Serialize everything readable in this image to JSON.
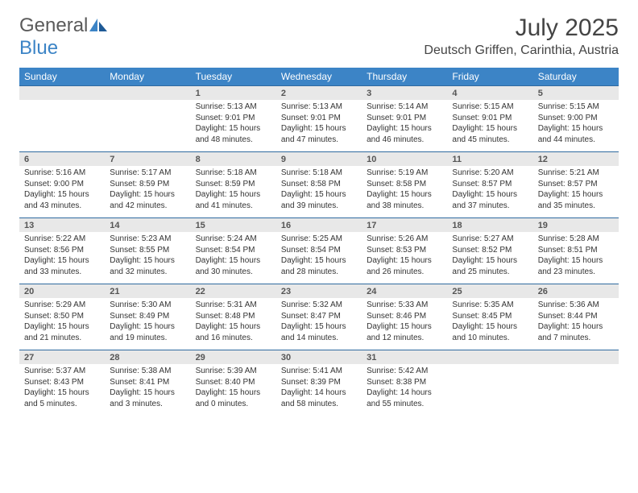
{
  "brand": {
    "word1": "General",
    "word2": "Blue"
  },
  "title": "July 2025",
  "location": "Deutsch Griffen, Carinthia, Austria",
  "colors": {
    "header_bg": "#3c84c6",
    "header_border": "#2f6aa0",
    "dayband_bg": "#e8e8e8",
    "text": "#333333"
  },
  "weekdays": [
    "Sunday",
    "Monday",
    "Tuesday",
    "Wednesday",
    "Thursday",
    "Friday",
    "Saturday"
  ],
  "weeks": [
    [
      null,
      null,
      {
        "n": "1",
        "sunrise": "5:13 AM",
        "sunset": "9:01 PM",
        "dl": "15 hours and 48 minutes."
      },
      {
        "n": "2",
        "sunrise": "5:13 AM",
        "sunset": "9:01 PM",
        "dl": "15 hours and 47 minutes."
      },
      {
        "n": "3",
        "sunrise": "5:14 AM",
        "sunset": "9:01 PM",
        "dl": "15 hours and 46 minutes."
      },
      {
        "n": "4",
        "sunrise": "5:15 AM",
        "sunset": "9:01 PM",
        "dl": "15 hours and 45 minutes."
      },
      {
        "n": "5",
        "sunrise": "5:15 AM",
        "sunset": "9:00 PM",
        "dl": "15 hours and 44 minutes."
      }
    ],
    [
      {
        "n": "6",
        "sunrise": "5:16 AM",
        "sunset": "9:00 PM",
        "dl": "15 hours and 43 minutes."
      },
      {
        "n": "7",
        "sunrise": "5:17 AM",
        "sunset": "8:59 PM",
        "dl": "15 hours and 42 minutes."
      },
      {
        "n": "8",
        "sunrise": "5:18 AM",
        "sunset": "8:59 PM",
        "dl": "15 hours and 41 minutes."
      },
      {
        "n": "9",
        "sunrise": "5:18 AM",
        "sunset": "8:58 PM",
        "dl": "15 hours and 39 minutes."
      },
      {
        "n": "10",
        "sunrise": "5:19 AM",
        "sunset": "8:58 PM",
        "dl": "15 hours and 38 minutes."
      },
      {
        "n": "11",
        "sunrise": "5:20 AM",
        "sunset": "8:57 PM",
        "dl": "15 hours and 37 minutes."
      },
      {
        "n": "12",
        "sunrise": "5:21 AM",
        "sunset": "8:57 PM",
        "dl": "15 hours and 35 minutes."
      }
    ],
    [
      {
        "n": "13",
        "sunrise": "5:22 AM",
        "sunset": "8:56 PM",
        "dl": "15 hours and 33 minutes."
      },
      {
        "n": "14",
        "sunrise": "5:23 AM",
        "sunset": "8:55 PM",
        "dl": "15 hours and 32 minutes."
      },
      {
        "n": "15",
        "sunrise": "5:24 AM",
        "sunset": "8:54 PM",
        "dl": "15 hours and 30 minutes."
      },
      {
        "n": "16",
        "sunrise": "5:25 AM",
        "sunset": "8:54 PM",
        "dl": "15 hours and 28 minutes."
      },
      {
        "n": "17",
        "sunrise": "5:26 AM",
        "sunset": "8:53 PM",
        "dl": "15 hours and 26 minutes."
      },
      {
        "n": "18",
        "sunrise": "5:27 AM",
        "sunset": "8:52 PM",
        "dl": "15 hours and 25 minutes."
      },
      {
        "n": "19",
        "sunrise": "5:28 AM",
        "sunset": "8:51 PM",
        "dl": "15 hours and 23 minutes."
      }
    ],
    [
      {
        "n": "20",
        "sunrise": "5:29 AM",
        "sunset": "8:50 PM",
        "dl": "15 hours and 21 minutes."
      },
      {
        "n": "21",
        "sunrise": "5:30 AM",
        "sunset": "8:49 PM",
        "dl": "15 hours and 19 minutes."
      },
      {
        "n": "22",
        "sunrise": "5:31 AM",
        "sunset": "8:48 PM",
        "dl": "15 hours and 16 minutes."
      },
      {
        "n": "23",
        "sunrise": "5:32 AM",
        "sunset": "8:47 PM",
        "dl": "15 hours and 14 minutes."
      },
      {
        "n": "24",
        "sunrise": "5:33 AM",
        "sunset": "8:46 PM",
        "dl": "15 hours and 12 minutes."
      },
      {
        "n": "25",
        "sunrise": "5:35 AM",
        "sunset": "8:45 PM",
        "dl": "15 hours and 10 minutes."
      },
      {
        "n": "26",
        "sunrise": "5:36 AM",
        "sunset": "8:44 PM",
        "dl": "15 hours and 7 minutes."
      }
    ],
    [
      {
        "n": "27",
        "sunrise": "5:37 AM",
        "sunset": "8:43 PM",
        "dl": "15 hours and 5 minutes."
      },
      {
        "n": "28",
        "sunrise": "5:38 AM",
        "sunset": "8:41 PM",
        "dl": "15 hours and 3 minutes."
      },
      {
        "n": "29",
        "sunrise": "5:39 AM",
        "sunset": "8:40 PM",
        "dl": "15 hours and 0 minutes."
      },
      {
        "n": "30",
        "sunrise": "5:41 AM",
        "sunset": "8:39 PM",
        "dl": "14 hours and 58 minutes."
      },
      {
        "n": "31",
        "sunrise": "5:42 AM",
        "sunset": "8:38 PM",
        "dl": "14 hours and 55 minutes."
      },
      null,
      null
    ]
  ],
  "labels": {
    "sunrise": "Sunrise: ",
    "sunset": "Sunset: ",
    "daylight": "Daylight: "
  }
}
